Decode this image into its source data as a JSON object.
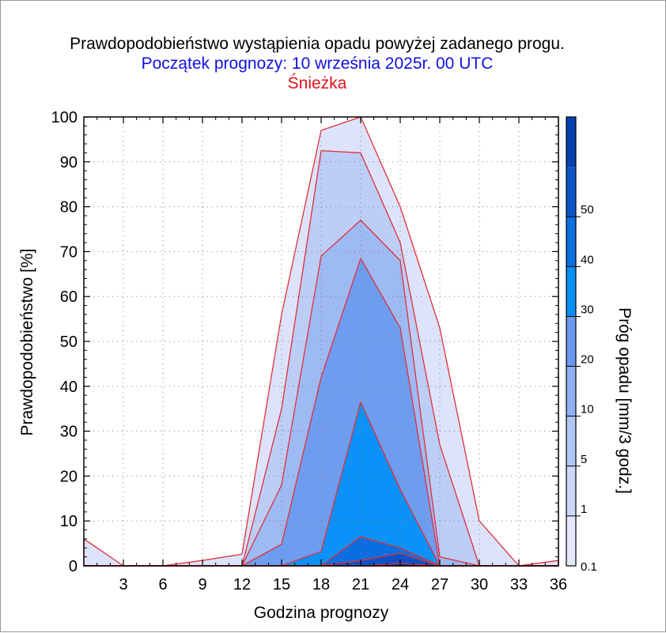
{
  "title": "Prawdopodobieństwo wystąpienia opadu powyżej zadanego progu.",
  "subtitle": "Początek prognozy: 10 września 2025r. 00 UTC",
  "station": "Śnieżka",
  "colors": {
    "title": "#000000",
    "subtitle": "#1010e0",
    "station": "#e0101a",
    "outline": "#e0303a"
  },
  "chart_data": {
    "type": "area",
    "xlabel": "Godzina prognozy",
    "ylabel": "Prawdopodobieństwo [%]",
    "xlim": [
      0,
      36
    ],
    "ylim": [
      0,
      100
    ],
    "x_ticks": [
      "3",
      "6",
      "9",
      "12",
      "15",
      "18",
      "21",
      "24",
      "27",
      "30",
      "33",
      "36"
    ],
    "y_ticks": [
      "0",
      "10",
      "20",
      "30",
      "40",
      "50",
      "60",
      "70",
      "80",
      "90",
      "100"
    ],
    "x": [
      0,
      3,
      6,
      9,
      12,
      15,
      18,
      21,
      24,
      27,
      30,
      33,
      36
    ],
    "colorbar": {
      "title": "Próg opadu [mm/3 godz.]",
      "labels": [
        "0.1",
        "1",
        "5",
        "10",
        "20",
        "30",
        "40",
        "50"
      ],
      "colors": [
        "#e4e8fb",
        "#cdd8f8",
        "#b0c6f5",
        "#8fb0f2",
        "#6a98ee",
        "#0a8ff5",
        "#0a6fe0",
        "#0a55c8",
        "#083fb0"
      ]
    },
    "series": [
      {
        "name": "0.1",
        "color": "#dde3fa",
        "values": [
          6,
          0,
          0,
          1.2,
          2.6,
          56,
          97,
          100,
          80,
          53,
          10,
          0,
          1.2
        ]
      },
      {
        "name": "1",
        "color": "#bccdf6",
        "values": [
          0,
          0,
          0,
          0,
          0,
          35,
          92.5,
          92,
          72,
          27,
          0,
          0,
          0
        ]
      },
      {
        "name": "5",
        "color": "#9dbaf3",
        "values": [
          0,
          0,
          0,
          0,
          0,
          18,
          69,
          77,
          68,
          2,
          0,
          0,
          0
        ]
      },
      {
        "name": "10",
        "color": "#6e9cef",
        "values": [
          0,
          0,
          0,
          0,
          0,
          4.8,
          42,
          68.5,
          53,
          0,
          0,
          0,
          0
        ]
      },
      {
        "name": "20",
        "color": "#0a92f8",
        "values": [
          0,
          0,
          0,
          0,
          0,
          0,
          3.2,
          36.5,
          17,
          0,
          0,
          0,
          0
        ]
      },
      {
        "name": "30",
        "color": "#0a6ee0",
        "values": [
          0,
          0,
          0,
          0,
          0,
          0,
          0,
          6.5,
          4,
          0,
          0,
          0,
          0
        ]
      },
      {
        "name": "40",
        "color": "#0a52c6",
        "values": [
          0,
          0,
          0,
          0,
          0,
          0,
          0,
          1.2,
          2.8,
          0,
          0,
          0,
          0
        ]
      },
      {
        "name": "50",
        "color": "#083ca8",
        "values": [
          0,
          0,
          0,
          0,
          0,
          0,
          0,
          0,
          0.5,
          0,
          0,
          0,
          0
        ]
      }
    ]
  }
}
